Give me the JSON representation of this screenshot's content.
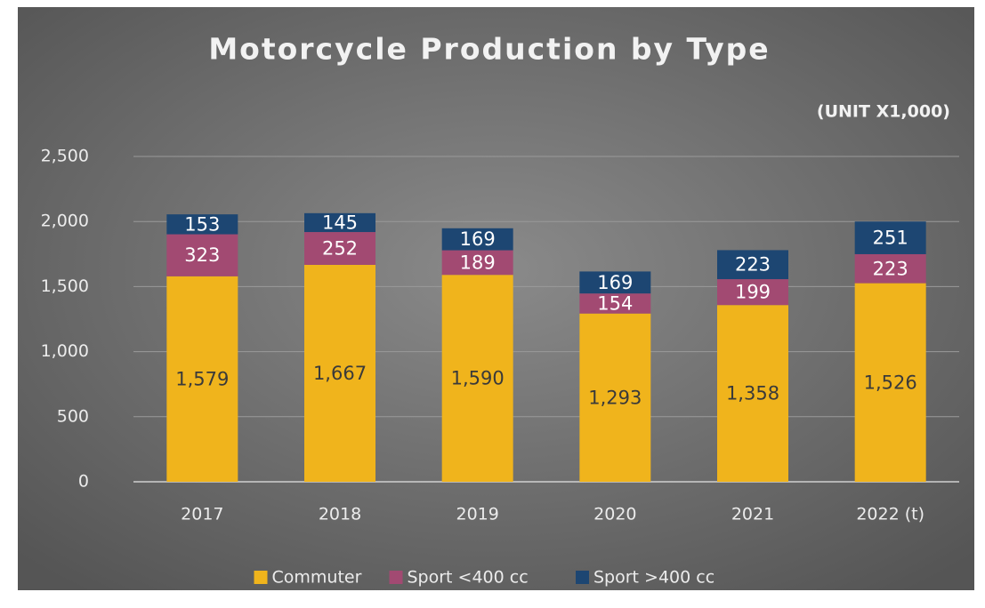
{
  "chart_data": {
    "type": "stacked_bar",
    "title": "Motorcycle Production by Type",
    "annotation": "(UNIT X1,000)",
    "categories": [
      "2017",
      "2018",
      "2019",
      "2020",
      "2021",
      "2022 (t)"
    ],
    "series": [
      {
        "name": "Commuter",
        "color": "#f0b41c",
        "values": [
          1579,
          1667,
          1590,
          1293,
          1358,
          1526
        ],
        "value_labels": [
          "1,579",
          "1,667",
          "1,590",
          "1,293",
          "1,358",
          "1,526"
        ]
      },
      {
        "name": "Sport <400 cc",
        "color": "#a24a72",
        "values": [
          323,
          252,
          189,
          154,
          199,
          223
        ]
      },
      {
        "name": "Sport >400 cc",
        "color": "#1d4672",
        "values": [
          153,
          145,
          169,
          169,
          223,
          251
        ]
      }
    ],
    "ylim": [
      0,
      2500
    ],
    "yticks": [
      {
        "value": 0,
        "label": "0"
      },
      {
        "value": 500,
        "label": "500"
      },
      {
        "value": 1000,
        "label": "1,000"
      },
      {
        "value": 1500,
        "label": "1,500"
      },
      {
        "value": 2000,
        "label": "2,000"
      },
      {
        "value": 2500,
        "label": "2,500"
      }
    ],
    "grid": true,
    "legend": "bottom"
  }
}
